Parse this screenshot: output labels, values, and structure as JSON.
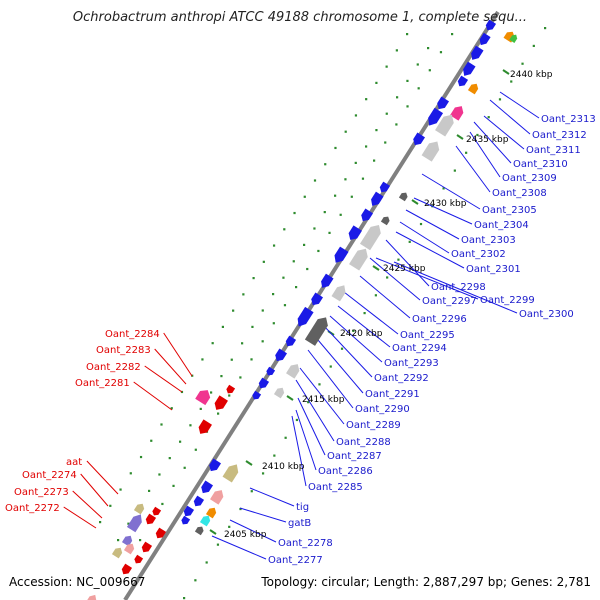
{
  "title": "Ochrobactrum anthropi ATCC 49188 chromosome 1, complete sequ...",
  "accession": {
    "label": "Accession:",
    "value": "NC_009667"
  },
  "topology_line": "Topology: circular; Length: 2,887,297 bp; Genes: 2,781",
  "kbp_labels": [
    "2440 kbp",
    "2435 kbp",
    "2430 kbp",
    "2425 kbp",
    "2420 kbp",
    "2415 kbp",
    "2410 kbp",
    "2405 kbp"
  ],
  "right_gene_labels": [
    "Oant_2313",
    "Oant_2312",
    "Oant_2311",
    "Oant_2310",
    "Oant_2309",
    "Oant_2308",
    "Oant_2305",
    "Oant_2304",
    "Oant_2303",
    "Oant_2302",
    "Oant_2301",
    "Oant_2298",
    "Oant_2299",
    "Oant_2297",
    "Oant_2300",
    "Oant_2296",
    "Oant_2295",
    "Oant_2294",
    "Oant_2293",
    "Oant_2292",
    "Oant_2291",
    "Oant_2290",
    "Oant_2289",
    "Oant_2288",
    "Oant_2287",
    "Oant_2286",
    "Oant_2285",
    "tig",
    "gatB",
    "Oant_2278",
    "Oant_2277"
  ],
  "left_gene_labels": [
    "Oant_2284",
    "Oant_2283",
    "Oant_2282",
    "Oant_2281",
    "aat",
    "Oant_2274",
    "Oant_2273",
    "Oant_2272"
  ],
  "colors": {
    "forward_gene": "#e00000",
    "reverse_gene": "#1a1ae6",
    "backbone": "#808080",
    "tick": "#2e8b2e",
    "pink": "#f0358f",
    "orange": "#f08c00",
    "light_gray": "#c8c8c8",
    "dark_gray": "#606060",
    "khaki": "#c8bb80",
    "salmon": "#f0a0a0",
    "purple": "#8070d0",
    "cyan": "#33e6e6",
    "green": "#40c040"
  }
}
